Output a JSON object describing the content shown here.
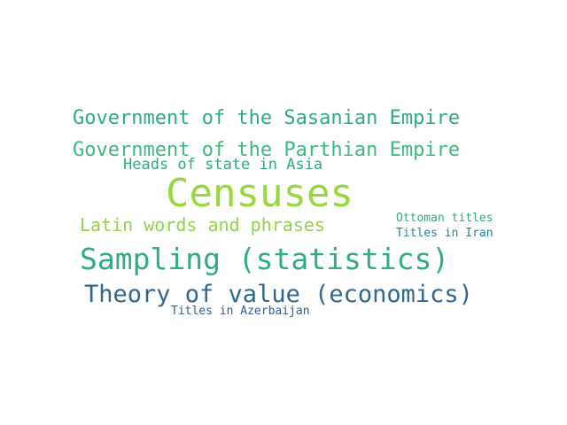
{
  "words": [
    {
      "id": "sasanian",
      "text": "Government of the Sasanian Empire",
      "color": "#2ea98a"
    },
    {
      "id": "parthian",
      "text": "Government of the Parthian Empire",
      "color": "#3fb87b"
    },
    {
      "id": "heads",
      "text": "Heads of state in Asia",
      "color": "#2ea98a"
    },
    {
      "id": "censuses",
      "text": "Censuses",
      "color": "#97d73f"
    },
    {
      "id": "latin",
      "text": "Latin words and phrases",
      "color": "#8fd449"
    },
    {
      "id": "ottoman",
      "text": "Ottoman titles",
      "color": "#2ea98a"
    },
    {
      "id": "iran",
      "text": "Titles in Iran",
      "color": "#2c7f8e"
    },
    {
      "id": "sampling",
      "text": "Sampling (statistics)",
      "color": "#2fac87"
    },
    {
      "id": "theory",
      "text": "Theory of value (economics)",
      "color": "#31668d"
    },
    {
      "id": "azerbaijan",
      "text": "Titles in Azerbaijan",
      "color": "#3b5a8c"
    }
  ]
}
